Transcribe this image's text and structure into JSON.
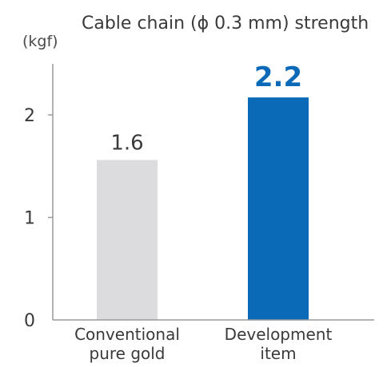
{
  "chart_data": {
    "type": "bar",
    "title": "Cable chain (ϕ 0.3 mm) strength",
    "ylabel": "(kgf)",
    "xlabel": "",
    "categories": [
      "Conventional pure gold",
      "Development item"
    ],
    "category_lines": [
      [
        "Conventional",
        "pure gold"
      ],
      [
        "Development",
        "item"
      ]
    ],
    "values": [
      1.56,
      2.17
    ],
    "value_labels": [
      "1.6",
      "2.2"
    ],
    "yticks": [
      "0",
      "1",
      "2"
    ],
    "ylim": [
      0,
      2.5
    ],
    "grid": false,
    "legend": "none",
    "colors": {
      "bars": [
        "#dcdcde",
        "#0a6ab8"
      ],
      "value_labels": [
        "#3a3a3a",
        "#0a6ab8"
      ],
      "axis": "#9a9a9a"
    }
  }
}
